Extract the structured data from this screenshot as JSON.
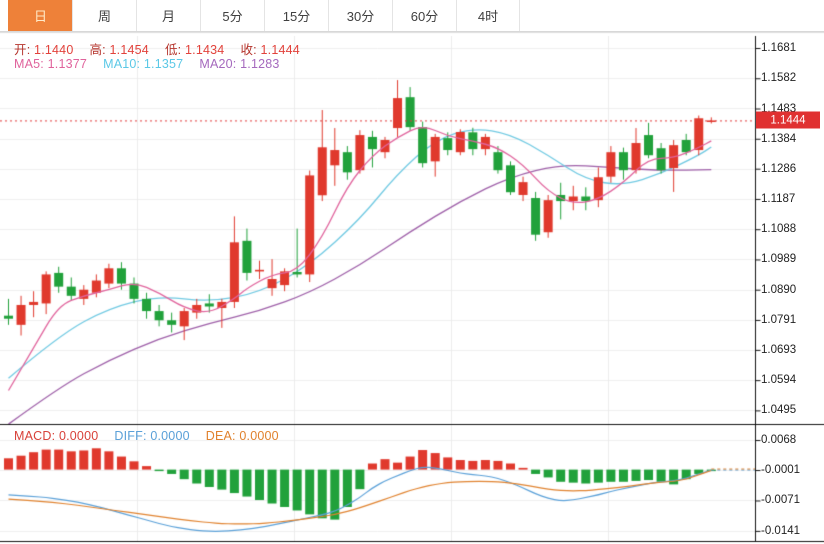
{
  "tabs": [
    {
      "key": "tab-day",
      "label": "日",
      "active": true
    },
    {
      "key": "tab-week",
      "label": "周",
      "active": false
    },
    {
      "key": "tab-month",
      "label": "月",
      "active": false
    },
    {
      "key": "tab-5min",
      "label": "5分",
      "active": false
    },
    {
      "key": "tab-15min",
      "label": "15分",
      "active": false
    },
    {
      "key": "tab-30min",
      "label": "30分",
      "active": false
    },
    {
      "key": "tab-60min",
      "label": "60分",
      "active": false
    },
    {
      "key": "tab-4hour",
      "label": "4时",
      "active": false
    }
  ],
  "ohlc_legend": [
    {
      "key": "open",
      "label": "开:",
      "value": "1.1440",
      "label_color": "#b5342c",
      "value_color": "#e2423b"
    },
    {
      "key": "high",
      "label": "高:",
      "value": "1.1454",
      "label_color": "#b5342c",
      "value_color": "#e2423b"
    },
    {
      "key": "low",
      "label": "低:",
      "value": "1.1434",
      "label_color": "#b5342c",
      "value_color": "#e2423b"
    },
    {
      "key": "close",
      "label": "收:",
      "value": "1.1444",
      "label_color": "#b5342c",
      "value_color": "#e2423b"
    }
  ],
  "ma_legend": [
    {
      "key": "ma5",
      "label": "MA5:",
      "value": "1.1377",
      "color": "#e0639c"
    },
    {
      "key": "ma10",
      "label": "MA10:",
      "value": "1.1357",
      "color": "#5bc8e6"
    },
    {
      "key": "ma20",
      "label": "MA20:",
      "value": "1.1283",
      "color": "#a569bd"
    }
  ],
  "macd_legend": [
    {
      "key": "macd",
      "label": "MACD:",
      "value": "0.0000",
      "color": "#d8423a"
    },
    {
      "key": "diff",
      "label": "DIFF:",
      "value": "0.0000",
      "color": "#5aa0d8"
    },
    {
      "key": "dea",
      "label": "DEA:",
      "value": "0.0000",
      "color": "#e0822e"
    }
  ],
  "price_tag": "1.1444",
  "colors": {
    "up": "#e0392d",
    "down": "#21a13b",
    "ma5": "#e0639c",
    "ma10": "#6fc9e2",
    "ma20": "#9e5fa8",
    "diff": "#5aa0d8",
    "dea": "#e0822e",
    "accent": "#ee8139",
    "grid": "#efefef",
    "vgrid": "#ececec",
    "axis": "#222222",
    "price_line": "#e03c3c",
    "tag_bg": "#e03131",
    "tag_text": "#ffffff"
  },
  "chart_data": {
    "type": "candlestick",
    "note": "red = up candle, green = down candle (CN convention); no x-axis labels visible",
    "main_panel": {
      "y_ticks": [
        1.1681,
        1.1582,
        1.1483,
        1.1384,
        1.1286,
        1.1187,
        1.1088,
        1.0989,
        1.089,
        1.0791,
        1.0693,
        1.0594,
        1.0495
      ],
      "ylim": [
        1.0446,
        1.1681
      ],
      "current_price_line": 1.1444,
      "candles_ohlc": [
        [
          1.0805,
          1.086,
          1.0775,
          1.0795
        ],
        [
          1.0775,
          1.087,
          1.074,
          1.084
        ],
        [
          1.084,
          1.0885,
          1.08,
          1.085
        ],
        [
          1.0845,
          1.095,
          1.081,
          1.094
        ],
        [
          1.0945,
          1.0965,
          1.088,
          1.09
        ],
        [
          1.09,
          1.093,
          1.0855,
          1.087
        ],
        [
          1.086,
          1.0905,
          1.084,
          1.089
        ],
        [
          1.088,
          1.094,
          1.0865,
          1.092
        ],
        [
          1.091,
          1.0975,
          1.0895,
          1.096
        ],
        [
          1.096,
          1.098,
          1.089,
          1.091
        ],
        [
          1.091,
          1.093,
          1.0845,
          1.086
        ],
        [
          1.086,
          1.088,
          1.0795,
          1.082
        ],
        [
          1.082,
          1.084,
          1.077,
          1.079
        ],
        [
          1.079,
          1.0815,
          1.075,
          1.0775
        ],
        [
          1.077,
          1.083,
          1.0725,
          1.082
        ],
        [
          1.0815,
          1.086,
          1.0795,
          1.084
        ],
        [
          1.0845,
          1.0875,
          1.0815,
          1.0835
        ],
        [
          1.083,
          1.086,
          1.0765,
          1.085
        ],
        [
          1.085,
          1.113,
          1.083,
          1.1045
        ],
        [
          1.105,
          1.109,
          1.092,
          1.0945
        ],
        [
          1.095,
          1.0985,
          1.0925,
          1.0955
        ],
        [
          1.0895,
          1.099,
          1.087,
          1.0925
        ],
        [
          1.0905,
          1.096,
          1.0885,
          1.095
        ],
        [
          1.0948,
          1.109,
          1.093,
          1.094
        ],
        [
          1.094,
          1.128,
          1.0915,
          1.1264
        ],
        [
          1.1199,
          1.1478,
          1.118,
          1.1356
        ],
        [
          1.1297,
          1.1419,
          1.123,
          1.1347
        ],
        [
          1.134,
          1.136,
          1.125,
          1.1274
        ],
        [
          1.1281,
          1.1412,
          1.127,
          1.1396
        ],
        [
          1.139,
          1.141,
          1.129,
          1.135
        ],
        [
          1.134,
          1.139,
          1.132,
          1.138
        ],
        [
          1.1419,
          1.1576,
          1.139,
          1.1517
        ],
        [
          1.152,
          1.1553,
          1.141,
          1.1422
        ],
        [
          1.1422,
          1.144,
          1.129,
          1.1304
        ],
        [
          1.131,
          1.14,
          1.126,
          1.139
        ],
        [
          1.1386,
          1.1405,
          1.133,
          1.1347
        ],
        [
          1.134,
          1.1415,
          1.133,
          1.1406
        ],
        [
          1.1405,
          1.142,
          1.133,
          1.135
        ],
        [
          1.135,
          1.14,
          1.133,
          1.139
        ],
        [
          1.134,
          1.136,
          1.127,
          1.1281
        ],
        [
          1.1297,
          1.131,
          1.12,
          1.1209
        ],
        [
          1.12,
          1.126,
          1.118,
          1.1242
        ],
        [
          1.119,
          1.121,
          1.105,
          1.107
        ],
        [
          1.1078,
          1.12,
          1.106,
          1.1183
        ],
        [
          1.12,
          1.124,
          1.112,
          1.118
        ],
        [
          1.118,
          1.123,
          1.115,
          1.1195
        ],
        [
          1.1195,
          1.1225,
          1.115,
          1.118
        ],
        [
          1.1183,
          1.129,
          1.116,
          1.1258
        ],
        [
          1.126,
          1.136,
          1.124,
          1.134
        ],
        [
          1.134,
          1.1355,
          1.125,
          1.1281
        ],
        [
          1.1281,
          1.1419,
          1.127,
          1.137
        ],
        [
          1.1396,
          1.1436,
          1.132,
          1.133
        ],
        [
          1.1353,
          1.137,
          1.127,
          1.1281
        ],
        [
          1.1288,
          1.138,
          1.121,
          1.1363
        ],
        [
          1.138,
          1.14,
          1.133,
          1.134
        ],
        [
          1.1347,
          1.146,
          1.133,
          1.1451
        ],
        [
          1.144,
          1.1454,
          1.1434,
          1.1444
        ]
      ],
      "ma5": 1.1377,
      "ma10": 1.1357,
      "ma20": 1.1283,
      "ma5_samples": [
        [
          0,
          1.056
        ],
        [
          2,
          1.07
        ],
        [
          4,
          1.084
        ],
        [
          6,
          1.087
        ],
        [
          8,
          1.089
        ],
        [
          10,
          1.0915
        ],
        [
          12,
          1.088
        ],
        [
          14,
          1.083
        ],
        [
          16,
          1.0812
        ],
        [
          18,
          1.086
        ],
        [
          19,
          1.0895
        ],
        [
          21,
          1.094
        ],
        [
          23,
          1.095
        ],
        [
          25,
          1.106
        ],
        [
          27,
          1.123
        ],
        [
          29,
          1.133
        ],
        [
          31,
          1.139
        ],
        [
          33,
          1.143
        ],
        [
          35,
          1.1392
        ],
        [
          37,
          1.1377
        ],
        [
          39,
          1.1355
        ],
        [
          41,
          1.13
        ],
        [
          43,
          1.121
        ],
        [
          45,
          1.117
        ],
        [
          47,
          1.1185
        ],
        [
          49,
          1.124
        ],
        [
          51,
          1.132
        ],
        [
          53,
          1.132
        ],
        [
          55,
          1.1355
        ],
        [
          56,
          1.1377
        ]
      ],
      "ma10_samples": [
        [
          0,
          1.06
        ],
        [
          4,
          1.074
        ],
        [
          8,
          1.083
        ],
        [
          12,
          1.087
        ],
        [
          16,
          1.085
        ],
        [
          20,
          1.088
        ],
        [
          24,
          1.097
        ],
        [
          28,
          1.112
        ],
        [
          31,
          1.127
        ],
        [
          34,
          1.138
        ],
        [
          37,
          1.142
        ],
        [
          40,
          1.14
        ],
        [
          43,
          1.133
        ],
        [
          46,
          1.125
        ],
        [
          49,
          1.123
        ],
        [
          52,
          1.127
        ],
        [
          55,
          1.133
        ],
        [
          56,
          1.1357
        ]
      ],
      "ma20_samples": [
        [
          0,
          1.045
        ],
        [
          4,
          1.057
        ],
        [
          8,
          1.066
        ],
        [
          12,
          1.073
        ],
        [
          16,
          1.078
        ],
        [
          20,
          1.082
        ],
        [
          24,
          1.088
        ],
        [
          28,
          1.097
        ],
        [
          32,
          1.108
        ],
        [
          36,
          1.118
        ],
        [
          40,
          1.126
        ],
        [
          44,
          1.13
        ],
        [
          48,
          1.129
        ],
        [
          52,
          1.128
        ],
        [
          56,
          1.1283
        ]
      ]
    },
    "macd_panel": {
      "y_ticks": [
        0.0068,
        -0.0001,
        -0.0071,
        -0.0141
      ],
      "macd": 0.0,
      "diff": 0.0,
      "dea": 0.0,
      "histogram": [
        0.0026,
        0.0032,
        0.004,
        0.0046,
        0.0046,
        0.0042,
        0.0044,
        0.0049,
        0.0042,
        0.003,
        0.0019,
        0.0008,
        -0.0002,
        -0.001,
        -0.0022,
        -0.0032,
        -0.004,
        -0.0046,
        -0.0054,
        -0.0062,
        -0.007,
        -0.0078,
        -0.0086,
        -0.0094,
        -0.0103,
        -0.0112,
        -0.0115,
        -0.0086,
        -0.0045,
        0.0014,
        0.0024,
        0.0016,
        0.003,
        0.0045,
        0.0038,
        0.0028,
        0.0022,
        0.002,
        0.0022,
        0.002,
        0.0014,
        0.0004,
        -0.001,
        -0.0018,
        -0.0028,
        -0.003,
        -0.0032,
        -0.003,
        -0.0028,
        -0.0028,
        -0.0026,
        -0.0024,
        -0.0028,
        -0.0034,
        -0.0022,
        -0.001,
        -0.0001
      ],
      "diff_line": [
        -0.0058,
        -0.006,
        -0.0062,
        -0.0064,
        -0.0068,
        -0.0072,
        -0.0078,
        -0.0084,
        -0.0092,
        -0.01,
        -0.0108,
        -0.0116,
        -0.0124,
        -0.0131,
        -0.0136,
        -0.014,
        -0.0142,
        -0.0142,
        -0.014,
        -0.0137,
        -0.0133,
        -0.0128,
        -0.0122,
        -0.0116,
        -0.011,
        -0.0104,
        -0.0096,
        -0.0082,
        -0.0064,
        -0.0042,
        -0.0026,
        -0.0014,
        -0.0002,
        0.0006,
        0.0004,
        -0.0002,
        -0.0008,
        -0.0012,
        -0.0014,
        -0.002,
        -0.003,
        -0.0042,
        -0.0056,
        -0.0066,
        -0.0072,
        -0.007,
        -0.0064,
        -0.0058,
        -0.005,
        -0.0044,
        -0.0038,
        -0.0032,
        -0.0028,
        -0.0026,
        -0.002,
        -0.001,
        -0.0001
      ],
      "dea_line": [
        -0.0068,
        -0.007,
        -0.0072,
        -0.0074,
        -0.0077,
        -0.008,
        -0.0084,
        -0.0088,
        -0.0092,
        -0.0096,
        -0.01,
        -0.0104,
        -0.0108,
        -0.0112,
        -0.0116,
        -0.0119,
        -0.0122,
        -0.0124,
        -0.0125,
        -0.0125,
        -0.0124,
        -0.0122,
        -0.0119,
        -0.0116,
        -0.0112,
        -0.0108,
        -0.0103,
        -0.0096,
        -0.0088,
        -0.0078,
        -0.0068,
        -0.0058,
        -0.0048,
        -0.004,
        -0.0034,
        -0.003,
        -0.0028,
        -0.0027,
        -0.0027,
        -0.0028,
        -0.0031,
        -0.0035,
        -0.004,
        -0.0045,
        -0.0048,
        -0.0049,
        -0.0048,
        -0.0046,
        -0.0043,
        -0.004,
        -0.0036,
        -0.0032,
        -0.0029,
        -0.0027,
        -0.0022,
        -0.0012,
        -0.0002
      ]
    }
  }
}
